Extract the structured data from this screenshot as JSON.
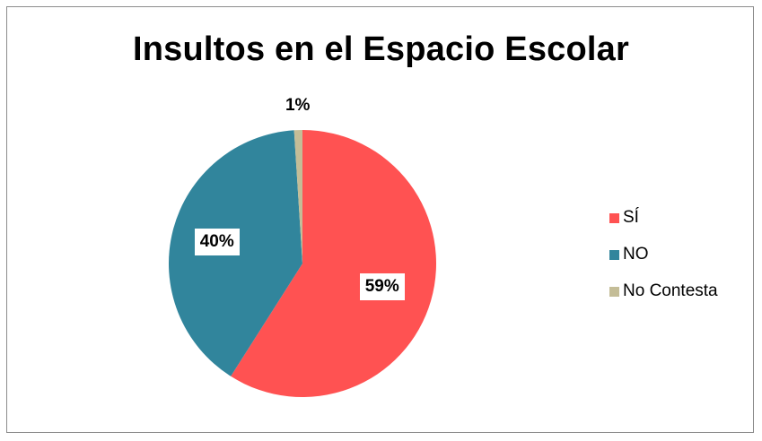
{
  "chart_data": {
    "type": "pie",
    "title": "Insultos en el Espacio Escolar",
    "categories": [
      "SÍ",
      "NO",
      "No Contesta"
    ],
    "values": [
      59,
      40,
      1
    ],
    "value_labels": [
      "59%",
      "40%",
      "1%"
    ],
    "colors": [
      "#ff5252",
      "#31859c",
      "#c4bd97"
    ],
    "legend_position": "right",
    "start_angle": "12 o'clock",
    "direction": "clockwise"
  }
}
